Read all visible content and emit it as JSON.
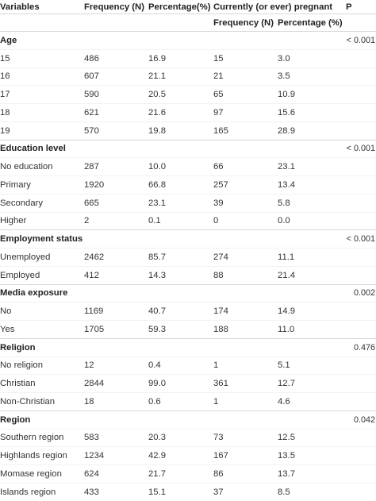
{
  "headers": {
    "variables": "Variables",
    "frequency": "Frequency (N)",
    "percentage": "Percentage(%)",
    "pregnant_group": "Currently (or ever) pregnant",
    "p": "P",
    "sub_frequency": "Frequency (N)",
    "sub_percentage": "Percentage (%)"
  },
  "sections": [
    {
      "name": "Age",
      "p": "< 0.001",
      "rows": [
        {
          "label": "15",
          "freq": "486",
          "pct": "16.9",
          "preg_freq": "15",
          "preg_pct": "3.0"
        },
        {
          "label": "16",
          "freq": "607",
          "pct": "21.1",
          "preg_freq": "21",
          "preg_pct": "3.5"
        },
        {
          "label": "17",
          "freq": "590",
          "pct": "20.5",
          "preg_freq": "65",
          "preg_pct": "10.9"
        },
        {
          "label": "18",
          "freq": "621",
          "pct": "21.6",
          "preg_freq": "97",
          "preg_pct": "15.6"
        },
        {
          "label": "19",
          "freq": "570",
          "pct": "19.8",
          "preg_freq": "165",
          "preg_pct": "28.9"
        }
      ]
    },
    {
      "name": "Education level",
      "p": "< 0.001",
      "rows": [
        {
          "label": "No education",
          "freq": "287",
          "pct": "10.0",
          "preg_freq": "66",
          "preg_pct": "23.1"
        },
        {
          "label": "Primary",
          "freq": "1920",
          "pct": "66.8",
          "preg_freq": "257",
          "preg_pct": "13.4"
        },
        {
          "label": "Secondary",
          "freq": "665",
          "pct": "23.1",
          "preg_freq": "39",
          "preg_pct": "5.8"
        },
        {
          "label": "Higher",
          "freq": "2",
          "pct": "0.1",
          "preg_freq": "0",
          "preg_pct": "0.0"
        }
      ]
    },
    {
      "name": "Employment status",
      "p": "< 0.001",
      "rows": [
        {
          "label": "Unemployed",
          "freq": "2462",
          "pct": "85.7",
          "preg_freq": "274",
          "preg_pct": "11.1"
        },
        {
          "label": "Employed",
          "freq": "412",
          "pct": "14.3",
          "preg_freq": "88",
          "preg_pct": "21.4"
        }
      ]
    },
    {
      "name": "Media exposure",
      "p": "0.002",
      "rows": [
        {
          "label": "No",
          "freq": "1169",
          "pct": "40.7",
          "preg_freq": "174",
          "preg_pct": "14.9"
        },
        {
          "label": "Yes",
          "freq": "1705",
          "pct": "59.3",
          "preg_freq": "188",
          "preg_pct": "11.0"
        }
      ]
    },
    {
      "name": "Religion",
      "p": "0.476",
      "rows": [
        {
          "label": "No religion",
          "freq": "12",
          "pct": "0.4",
          "preg_freq": "1",
          "preg_pct": "5.1"
        },
        {
          "label": "Christian",
          "freq": "2844",
          "pct": "99.0",
          "preg_freq": "361",
          "preg_pct": "12.7"
        },
        {
          "label": "Non-Christian",
          "freq": "18",
          "pct": "0.6",
          "preg_freq": "1",
          "preg_pct": "4.6"
        }
      ]
    },
    {
      "name": "Region",
      "p": "0.042",
      "rows": [
        {
          "label": "Southern region",
          "freq": "583",
          "pct": "20.3",
          "preg_freq": "73",
          "preg_pct": "12.5"
        },
        {
          "label": "Highlands region",
          "freq": "1234",
          "pct": "42.9",
          "preg_freq": "167",
          "preg_pct": "13.5"
        },
        {
          "label": "Momase region",
          "freq": "624",
          "pct": "21.7",
          "preg_freq": "86",
          "preg_pct": "13.7"
        },
        {
          "label": "Islands region",
          "freq": "433",
          "pct": "15.1",
          "preg_freq": "37",
          "preg_pct": "8.5"
        }
      ]
    }
  ]
}
